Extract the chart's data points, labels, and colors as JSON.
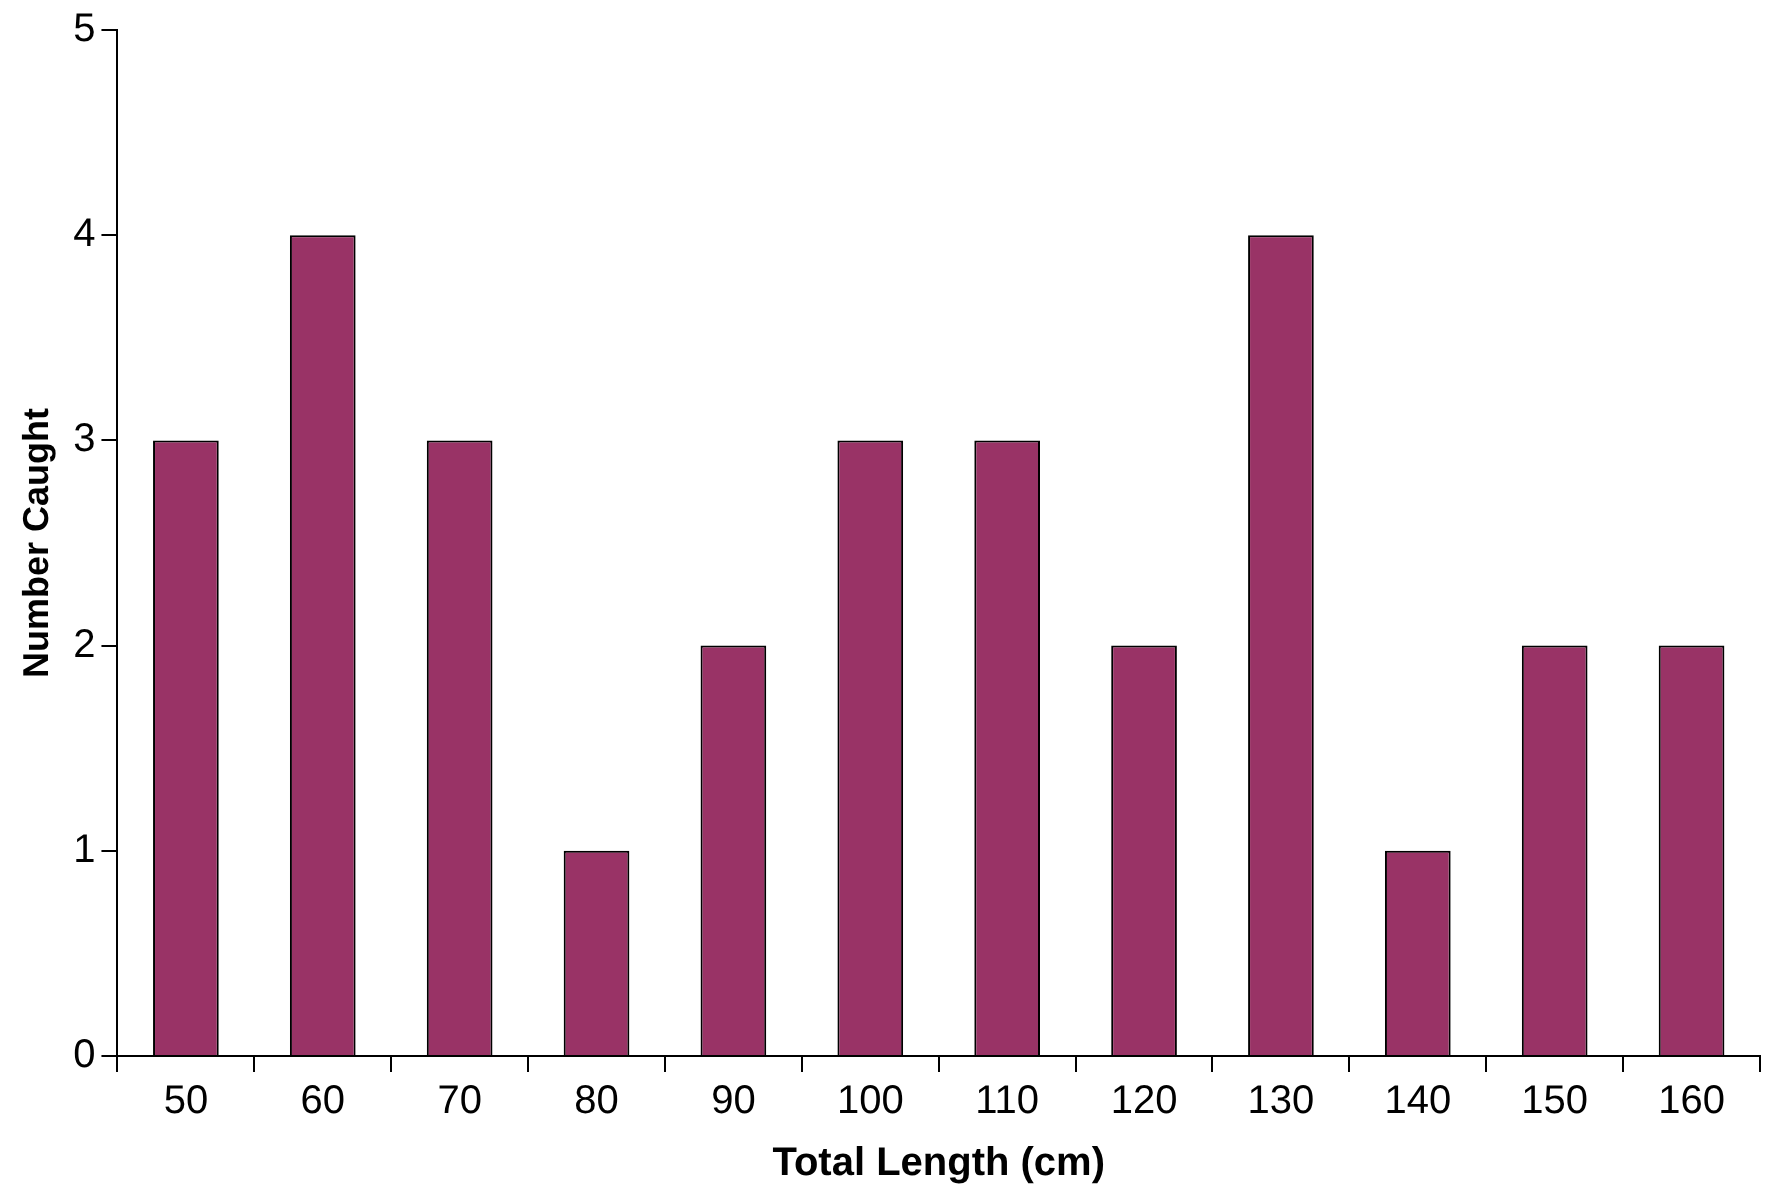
{
  "chart_data": {
    "type": "bar",
    "xlabel": "Total Length (cm)",
    "ylabel": "Number Caught",
    "categories": [
      "50",
      "60",
      "70",
      "80",
      "90",
      "100",
      "110",
      "120",
      "130",
      "140",
      "150",
      "160"
    ],
    "values": [
      3,
      4,
      3,
      1,
      2,
      3,
      3,
      2,
      4,
      1,
      2,
      2
    ],
    "color": "#993366",
    "ylim": [
      0,
      5
    ],
    "yticks": [
      0,
      1,
      2,
      3,
      4,
      5
    ]
  }
}
